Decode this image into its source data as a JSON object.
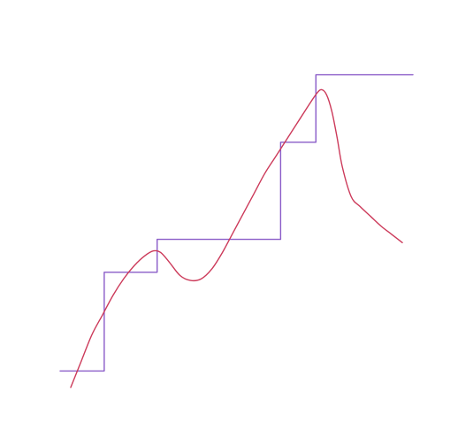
{
  "chart_data": {
    "type": "line",
    "title": "",
    "xlabel": "",
    "ylabel": "",
    "xlim": [
      0,
      100
    ],
    "ylim": [
      0,
      100
    ],
    "grid": false,
    "axes_visible": false,
    "series": [
      {
        "kind": "step",
        "color": "#8a5cc8",
        "x": [
          0,
          12.5,
          12.5,
          27.5,
          27.5,
          62.5,
          62.5,
          72.5,
          72.5,
          100
        ],
        "y": [
          5,
          5,
          35,
          35,
          45,
          45,
          74.5,
          74.5,
          95,
          95
        ]
      },
      {
        "kind": "smooth",
        "color": "#cc3a5a",
        "x": [
          3,
          6,
          9,
          12,
          15,
          18,
          21,
          24,
          26.5,
          28.5,
          31,
          34,
          37,
          40,
          43,
          46,
          49,
          52,
          55,
          58,
          61,
          64,
          67,
          70,
          72.5,
          74,
          75.5,
          77,
          78.5,
          80,
          82.5,
          85,
          88,
          91,
          94,
          97
        ],
        "y": [
          0,
          8,
          16,
          22,
          28,
          33,
          37,
          40,
          41.5,
          41,
          38,
          34,
          32.5,
          33,
          36,
          41,
          47,
          53,
          59,
          65,
          70,
          75,
          80,
          85,
          89,
          90.5,
          89,
          84,
          76,
          67,
          58,
          55,
          52,
          49,
          46.5,
          44
        ]
      }
    ]
  }
}
